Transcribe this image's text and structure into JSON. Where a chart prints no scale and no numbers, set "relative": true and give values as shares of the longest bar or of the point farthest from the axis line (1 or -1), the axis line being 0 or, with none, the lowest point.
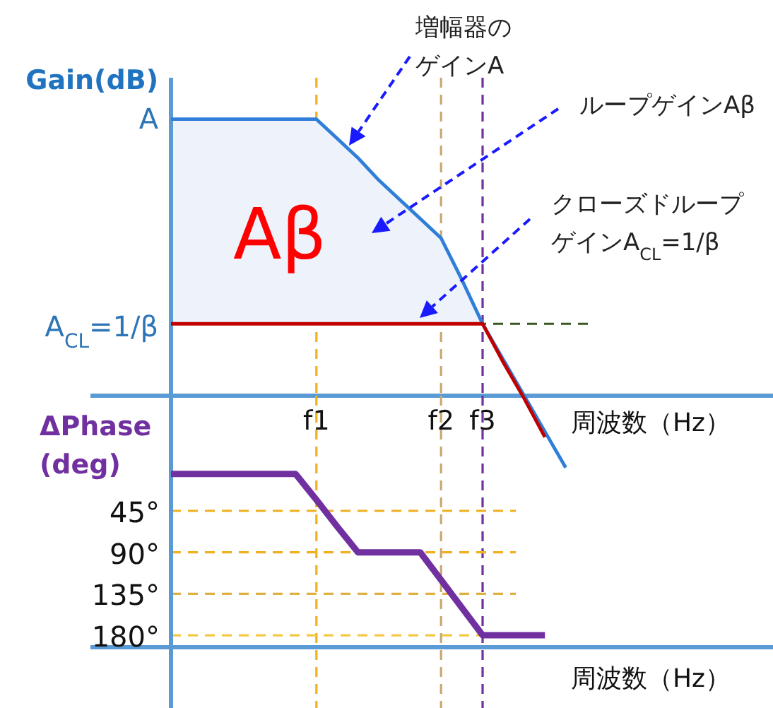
{
  "chart_data": [
    {
      "type": "line",
      "relative": true,
      "ylabel": "Gain(dB)",
      "xlabel": "周波数（Hz）",
      "categories": [
        null,
        null,
        null,
        null,
        null,
        null,
        null,
        "f1",
        null,
        null,
        null,
        null,
        null,
        "f2",
        null,
        "f3",
        null,
        null,
        null,
        null,
        null,
        null,
        null,
        null,
        null,
        null,
        null,
        null,
        null
      ],
      "series": [
        {
          "color": "#2f7ed8",
          "values": [
            1,
            1,
            1,
            1,
            1,
            1,
            1,
            1,
            0.93,
            0.86,
            0.78,
            0.71,
            0.64,
            0.57,
            0.42,
            0.26,
            0.13,
            0,
            -0.13,
            -0.26,
            null,
            null,
            null,
            null,
            null,
            null,
            null,
            null,
            null
          ],
          "lower": [
            0.26,
            0.26,
            0.26,
            0.26,
            0.26,
            0.26,
            0.26,
            0.26,
            0.26,
            0.26,
            0.26,
            0.26,
            0.26,
            0.26,
            0.26,
            0.26,
            null,
            null,
            null,
            null,
            null,
            null,
            null,
            null,
            null,
            null,
            null,
            null,
            null
          ],
          "upper": [
            1,
            1,
            1,
            1,
            1,
            1,
            1,
            1,
            0.93,
            0.86,
            0.78,
            0.71,
            0.64,
            0.57,
            0.42,
            0.26,
            null,
            null,
            null,
            null,
            null,
            null,
            null,
            null,
            null,
            null,
            null,
            null,
            null
          ]
        },
        {
          "color": "#c00000",
          "values": [
            0.26,
            0.26,
            0.26,
            0.26,
            0.26,
            0.26,
            0.26,
            0.26,
            0.26,
            0.26,
            0.26,
            0.26,
            0.26,
            0.26,
            0.26,
            0.26,
            0.12,
            -0.01,
            -0.15,
            null,
            null,
            null,
            null,
            null,
            null,
            null,
            null,
            null,
            null
          ]
        }
      ],
      "ref_lines": [
        {
          "axis": "x",
          "value": "f1",
          "color": "#f0b020",
          "line_style": "dashed"
        },
        {
          "axis": "x",
          "value": "f2",
          "color": "#c8a870",
          "line_style": "dashed"
        },
        {
          "axis": "x",
          "value": "f3",
          "color": "#7030a0",
          "line_style": "dashed"
        },
        {
          "axis": "y",
          "value": 0.26,
          "color": "#385723",
          "line_style": "dashed"
        }
      ],
      "annotations": [
        "A",
        "A$_{CL}$=1/β",
        "Aβ",
        "増幅器のゲインA",
        "ループゲインAβ",
        "クローズドループゲインA$_{CL}$=1/β"
      ]
    },
    {
      "type": "line",
      "ylabel": "ΔPhase\n(deg)",
      "xlabel": "周波数（Hz）",
      "ylim": [
        193,
        -80
      ],
      "tick_labels": "y",
      "categories": [
        null,
        null,
        null,
        null,
        null,
        null,
        null,
        "f1",
        null,
        null,
        null,
        null,
        null,
        "f2",
        null,
        "f3",
        null,
        null,
        null,
        null,
        null,
        null,
        null,
        null,
        null,
        null,
        null,
        null,
        null
      ],
      "yticks": [
        {
          "value": 45,
          "label": "45°"
        },
        {
          "value": 90,
          "label": "90°"
        },
        {
          "value": 135,
          "label": "135°"
        },
        {
          "value": 180,
          "label": "180°"
        }
      ],
      "series": [
        {
          "color": "#7030a0",
          "values": [
            5,
            5,
            5,
            5,
            5,
            5,
            5,
            33,
            62,
            90,
            90,
            90,
            90,
            120,
            150,
            180,
            180,
            180,
            180,
            null,
            null,
            null,
            null,
            null,
            null,
            null,
            null,
            null,
            null
          ]
        }
      ],
      "ref_lines": [
        {
          "axis": "x",
          "value": "f1",
          "color": "#f0b020",
          "line_style": "dashed"
        },
        {
          "axis": "x",
          "value": "f2",
          "color": "#c8a870",
          "line_style": "dashed"
        },
        {
          "axis": "x",
          "value": "f3",
          "color": "#7030a0",
          "line_style": "dashed"
        },
        {
          "axis": "y",
          "value": 45,
          "color": "#f0b020",
          "line_style": "dashed"
        },
        {
          "axis": "y",
          "value": 90,
          "color": "#f0b020",
          "line_style": "dashed"
        },
        {
          "axis": "y",
          "value": 135,
          "color": "#e0b040",
          "line_style": "dashed"
        },
        {
          "axis": "y",
          "value": 180,
          "color": "#f5c842",
          "line_style": "dashed"
        }
      ]
    }
  ]
}
